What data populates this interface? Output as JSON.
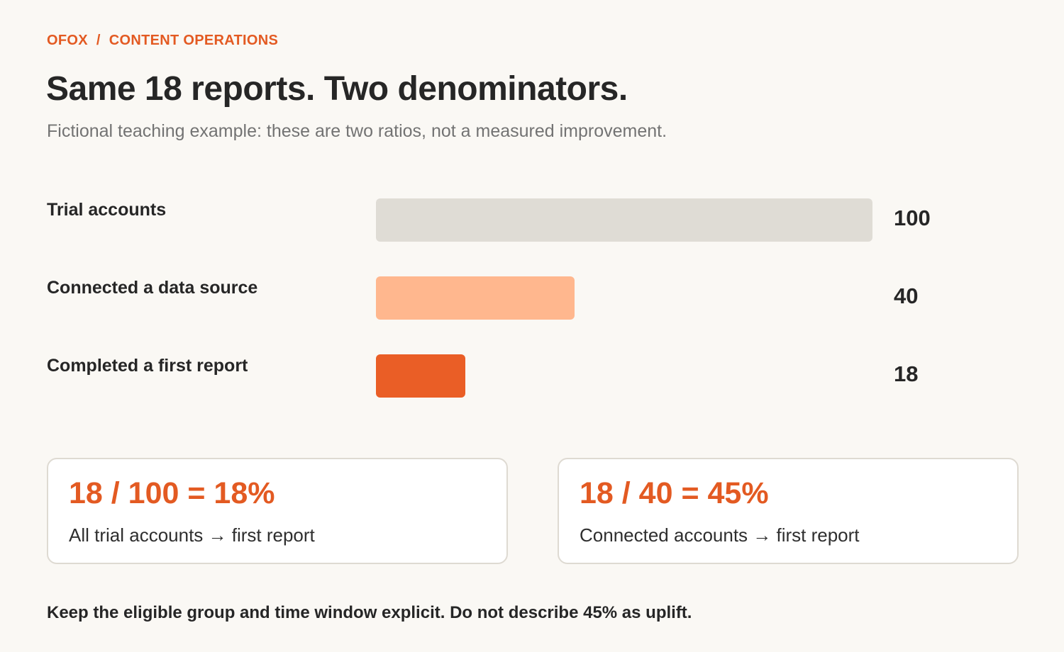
{
  "header": {
    "brand": "OFOX",
    "separator": "/",
    "section": "CONTENT OPERATIONS",
    "title": "Same 18 reports. Two denominators.",
    "subtitle": "Fictional teaching example: these are two ratios, not a measured improvement."
  },
  "chart_data": {
    "type": "bar",
    "orientation": "horizontal",
    "categories": [
      "Trial accounts",
      "Connected a data source",
      "Completed a first report"
    ],
    "values": [
      100,
      40,
      18
    ],
    "xlim": [
      0,
      100
    ],
    "grid": false,
    "colors": [
      "#dfdcd5",
      "#ffb78e",
      "#ea5e26"
    ]
  },
  "cards": [
    {
      "formula": "18 / 100 = 18%",
      "description": "All trial accounts → first report"
    },
    {
      "formula": "18 / 40 = 45%",
      "description": "Connected accounts → first report"
    }
  ],
  "footnote": "Keep the eligible group and time window explicit. Do not describe 45% as uplift."
}
